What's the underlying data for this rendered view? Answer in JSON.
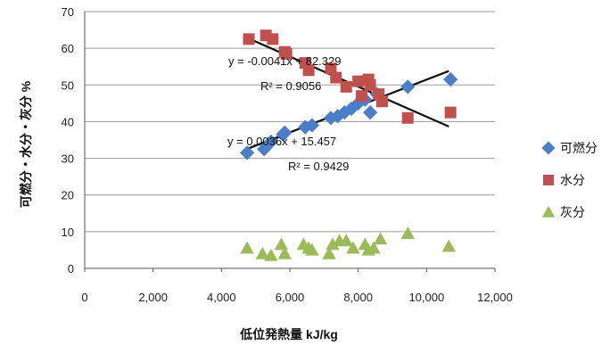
{
  "chart_data": {
    "type": "scatter",
    "title": "",
    "xlabel": "低位発熱量 kJ/kg",
    "ylabel": "可燃分・水分・灰分 %",
    "xlim": [
      0,
      12000
    ],
    "ylim": [
      0,
      70
    ],
    "x_ticks": [
      "0",
      "2,000",
      "4,000",
      "6,000",
      "8,000",
      "10,000",
      "12,000"
    ],
    "y_ticks": [
      "0",
      "10",
      "20",
      "30",
      "40",
      "50",
      "60",
      "70"
    ],
    "grid": "horizontal",
    "legend_position": "right",
    "series": [
      {
        "name": "可燃分",
        "color": "#4a7ec9",
        "marker": "diamond",
        "points": [
          [
            4750,
            31.5
          ],
          [
            5250,
            32.5
          ],
          [
            5450,
            34.5
          ],
          [
            5800,
            36.5
          ],
          [
            5850,
            37
          ],
          [
            6450,
            38.5
          ],
          [
            6650,
            39
          ],
          [
            7200,
            41
          ],
          [
            7400,
            41.5
          ],
          [
            7600,
            42.5
          ],
          [
            7800,
            43.5
          ],
          [
            8000,
            45
          ],
          [
            8200,
            46
          ],
          [
            8350,
            42.5
          ],
          [
            8550,
            47.5
          ],
          [
            9450,
            49.5
          ],
          [
            10700,
            51.5
          ]
        ],
        "trendline": {
          "slope": 0.0036,
          "intercept": 15.457,
          "x_range": [
            4700,
            10650
          ]
        },
        "equation": "y = 0.0036x + 15.457",
        "r2": "R² = 0.9429"
      },
      {
        "name": "水分",
        "color": "#c0504d",
        "marker": "square",
        "points": [
          [
            4800,
            62.5
          ],
          [
            5300,
            63.5
          ],
          [
            5500,
            62.5
          ],
          [
            5850,
            59
          ],
          [
            5900,
            58.5
          ],
          [
            6450,
            56
          ],
          [
            6550,
            54
          ],
          [
            7200,
            54.5
          ],
          [
            7350,
            52
          ],
          [
            7650,
            49.5
          ],
          [
            8000,
            51
          ],
          [
            8100,
            47
          ],
          [
            8300,
            51.5
          ],
          [
            8350,
            50
          ],
          [
            8600,
            47.5
          ],
          [
            8700,
            45.5
          ],
          [
            9450,
            41
          ],
          [
            10700,
            42.5
          ]
        ],
        "trendline": {
          "slope": -0.0041,
          "intercept": 82.329,
          "x_range": [
            4700,
            10650
          ]
        },
        "equation": "y = -0.0041x + 82.329",
        "r2": "R² = 0.9056"
      },
      {
        "name": "灰分",
        "color": "#9bbb59",
        "marker": "triangle",
        "points": [
          [
            4750,
            5.5
          ],
          [
            5200,
            4
          ],
          [
            5450,
            3.5
          ],
          [
            5750,
            6.5
          ],
          [
            5850,
            4
          ],
          [
            6400,
            6.5
          ],
          [
            6550,
            5.5
          ],
          [
            6650,
            5
          ],
          [
            7150,
            4
          ],
          [
            7250,
            6.5
          ],
          [
            7450,
            7.5
          ],
          [
            7650,
            7.5
          ],
          [
            7850,
            5.5
          ],
          [
            8200,
            6.5
          ],
          [
            8300,
            5
          ],
          [
            8450,
            5.5
          ],
          [
            8650,
            8
          ],
          [
            9450,
            9.5
          ],
          [
            10650,
            6
          ]
        ]
      }
    ]
  }
}
